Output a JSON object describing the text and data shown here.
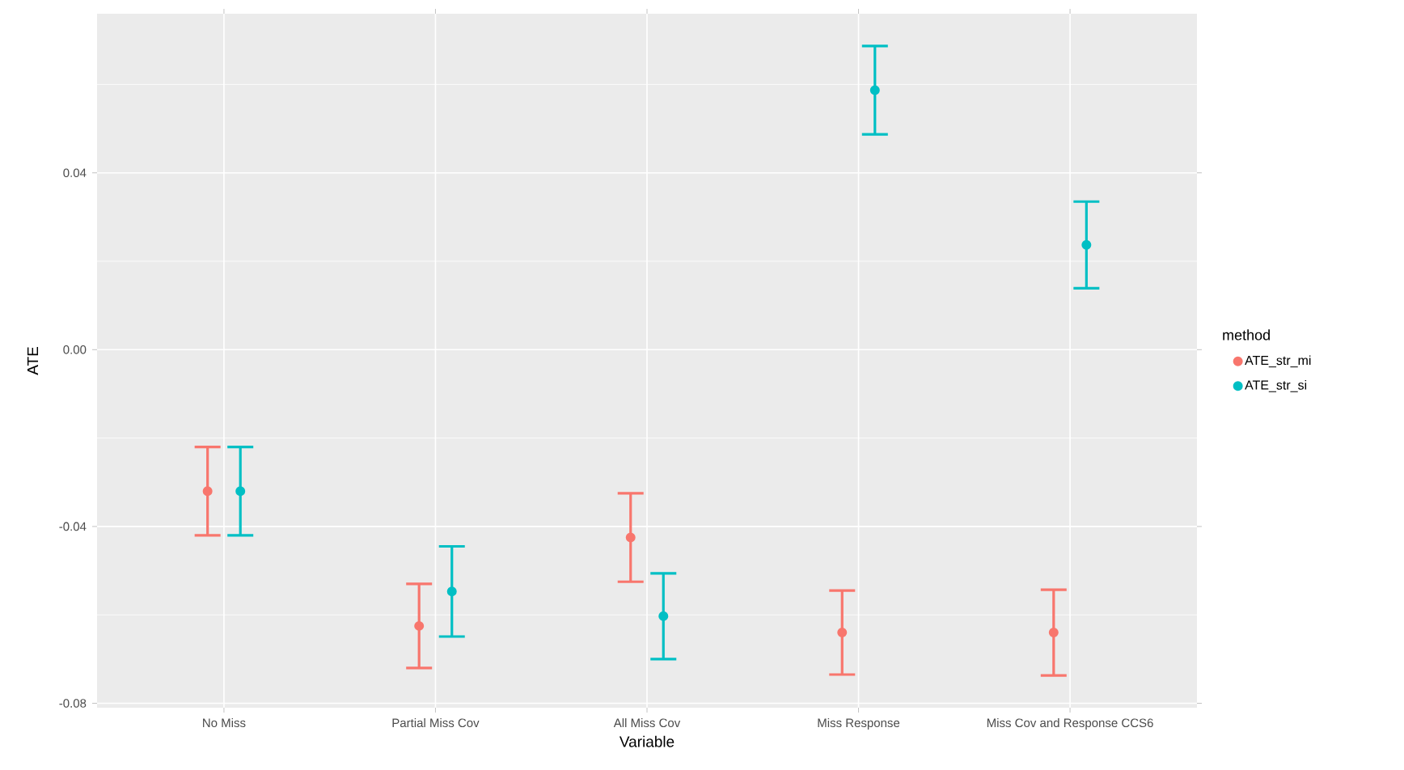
{
  "chart_data": {
    "type": "scatter",
    "xlabel": "Variable",
    "ylabel": "ATE",
    "legend_title": "method",
    "categories": [
      "No Miss",
      "Partial Miss Cov",
      "All Miss Cov",
      "Miss Response",
      "Miss Cov and Response CCS6"
    ],
    "series": [
      {
        "name": "ATE_str_mi",
        "color": "#f8766d",
        "values": [
          -0.032,
          -0.0625,
          -0.0425,
          -0.064,
          -0.064
        ],
        "errors": [
          0.01,
          0.0095,
          0.01,
          0.0095,
          0.0097
        ]
      },
      {
        "name": "ATE_str_si",
        "color": "#00bfc4",
        "values": [
          -0.032,
          -0.0547,
          -0.0603,
          0.0587,
          0.0237
        ],
        "errors": [
          0.01,
          0.0102,
          0.0097,
          0.01,
          0.0098
        ]
      }
    ],
    "ylim": [
      -0.081,
      0.076
    ],
    "yticks": [
      {
        "value": -0.08,
        "label": "-0.08"
      },
      {
        "value": -0.04,
        "label": "-0.04"
      },
      {
        "value": 0,
        "label": "0.00"
      },
      {
        "value": 0.04,
        "label": "0.04"
      }
    ],
    "grid": true,
    "legend": "right"
  }
}
